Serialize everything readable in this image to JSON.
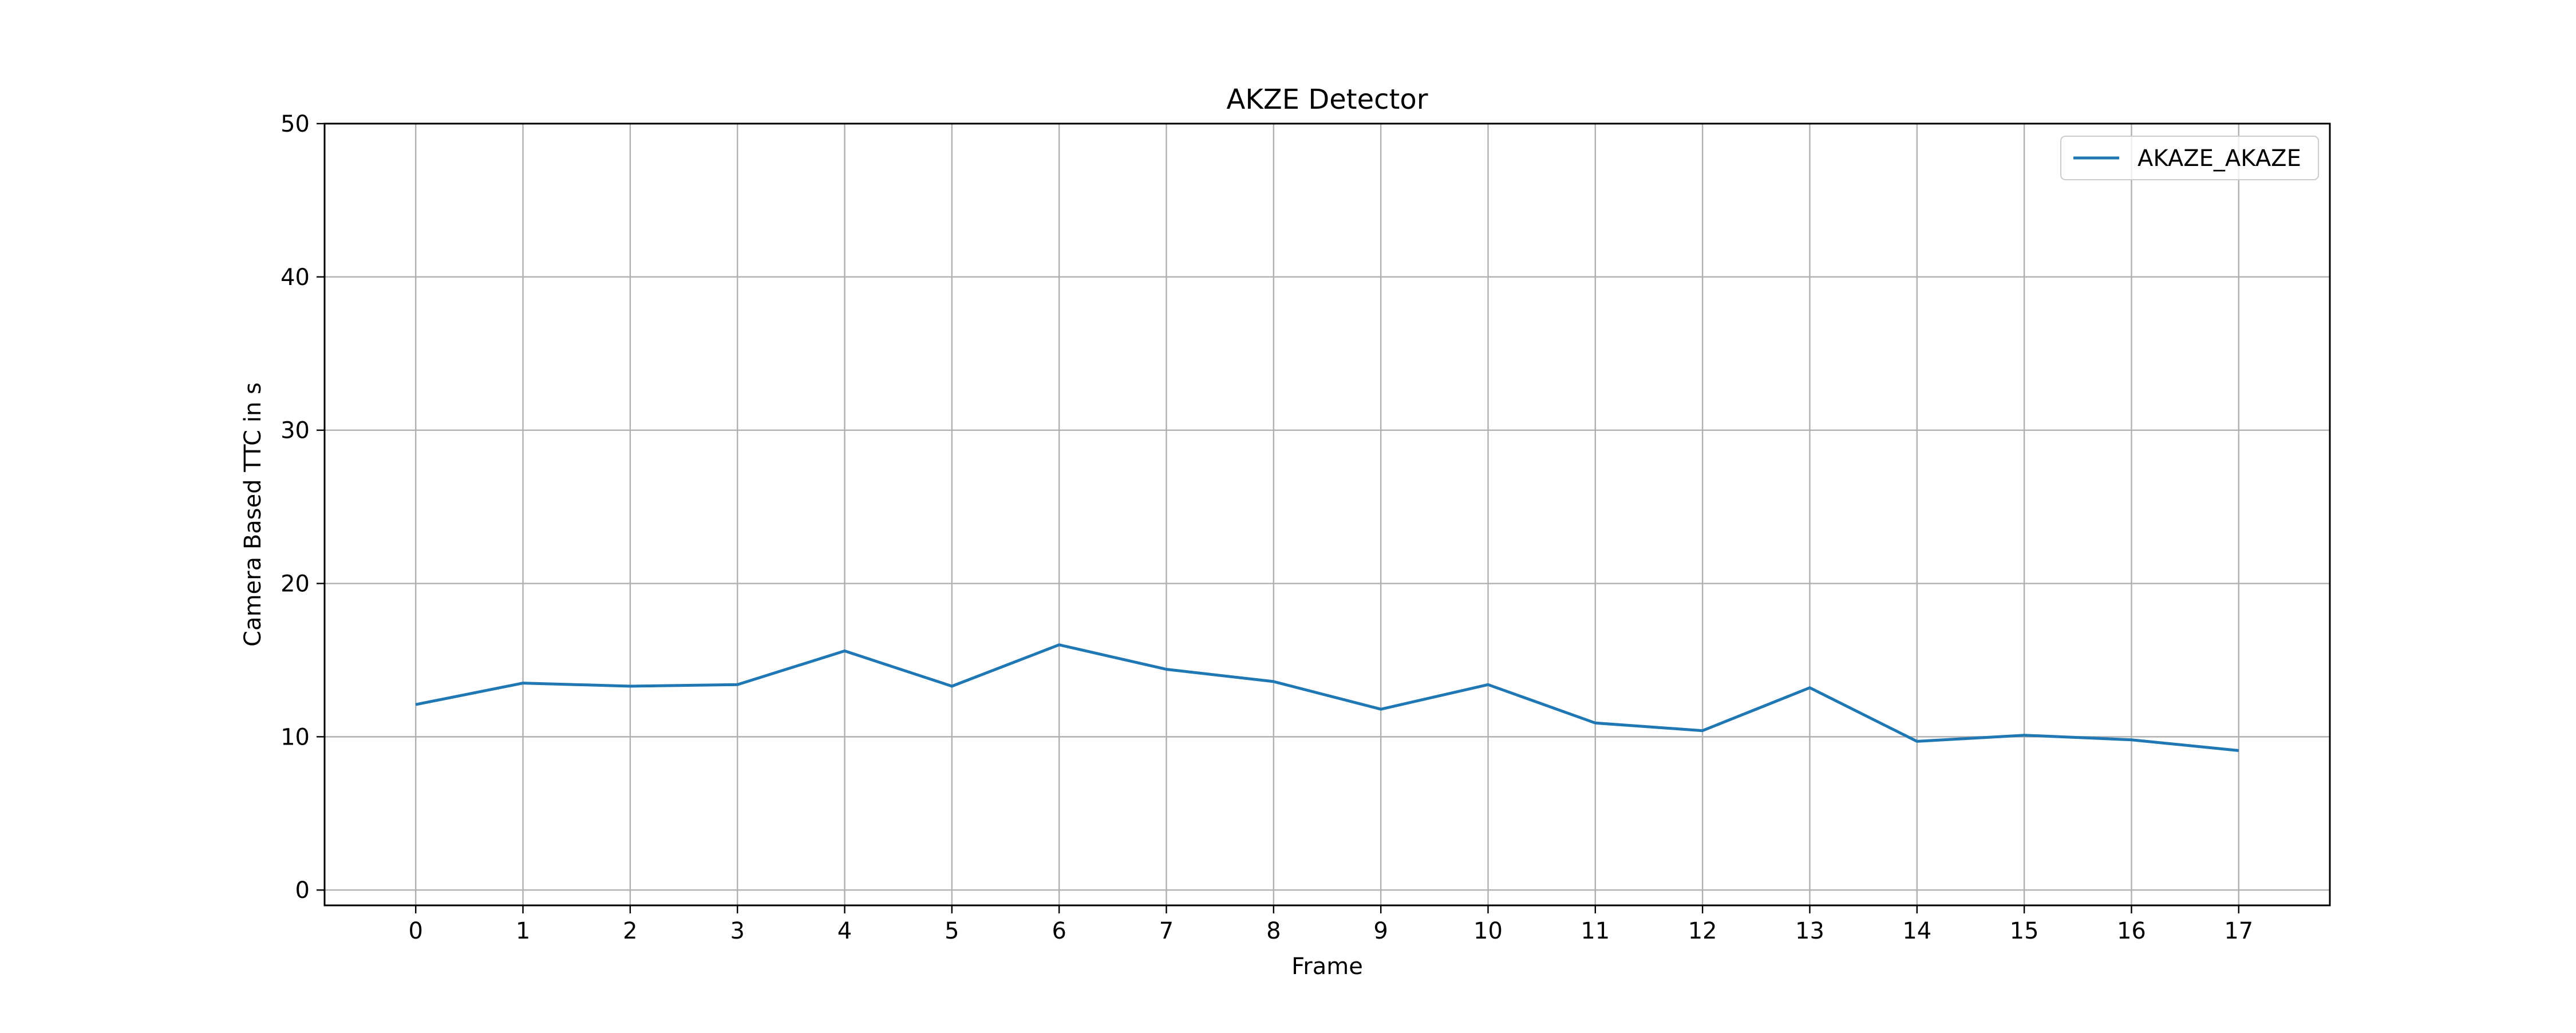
{
  "chart_data": {
    "type": "line",
    "title": "AKZE Detector",
    "xlabel": "Frame",
    "ylabel": "Camera Based TTC in s",
    "x": [
      0,
      1,
      2,
      3,
      4,
      5,
      6,
      7,
      8,
      9,
      10,
      11,
      12,
      13,
      14,
      15,
      16,
      17
    ],
    "x_ticks": [
      "0",
      "1",
      "2",
      "3",
      "4",
      "5",
      "6",
      "7",
      "8",
      "9",
      "10",
      "11",
      "12",
      "13",
      "14",
      "15",
      "16",
      "17"
    ],
    "y_ticks": [
      "0",
      "10",
      "20",
      "30",
      "40",
      "50"
    ],
    "xlim": [
      -0.85,
      17.85
    ],
    "ylim": [
      -1,
      50
    ],
    "grid": true,
    "legend_position": "top-right",
    "series": [
      {
        "name": "AKAZE_AKAZE",
        "color": "#1f77b4",
        "values": [
          12.1,
          13.5,
          13.3,
          13.4,
          15.6,
          13.3,
          16.0,
          14.4,
          13.6,
          11.8,
          13.4,
          10.9,
          10.4,
          13.2,
          9.7,
          10.1,
          9.8,
          9.1
        ]
      }
    ]
  }
}
